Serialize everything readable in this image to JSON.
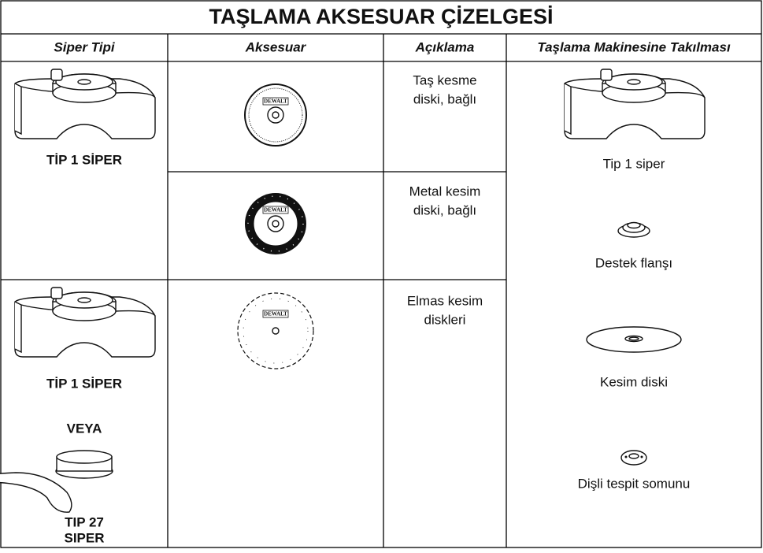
{
  "title": "TAŞLAMA AKSESUAR ÇİZELGESİ",
  "table": {
    "headers": [
      "Siper Tipi",
      "Aksesuar",
      "Açıklama",
      "Taşlama Makinesine Takılması"
    ],
    "rows": [
      {
        "guard": [
          "TİP 1 SİPER"
        ],
        "description": [
          "Taş kesme",
          "diski, bağlı"
        ]
      },
      {
        "description": [
          "Metal kesim",
          "diski, bağlı"
        ]
      },
      {
        "guard": [
          "TİP 1 SİPER",
          "VEYA",
          "TIP 27",
          "SIPER"
        ],
        "description": [
          "Elmas kesim",
          "diskleri"
        ]
      }
    ],
    "mounting": [
      "Tip 1 siper",
      "Destek flanşı",
      "Kesim diski",
      "Dişli tespit somunu"
    ]
  },
  "logo": "DEWALT"
}
